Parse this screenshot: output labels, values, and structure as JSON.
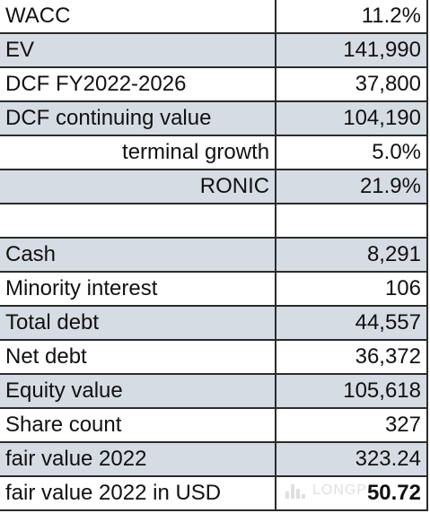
{
  "rows": [
    {
      "label": "WACC",
      "value": "11.2%"
    },
    {
      "label": "EV",
      "value": "141,990"
    },
    {
      "label": "DCF FY2022-2026",
      "value": "37,800"
    },
    {
      "label": "DCF continuing value",
      "value": "104,190"
    },
    {
      "label": "terminal growth",
      "value": "5.0%"
    },
    {
      "label": "RONIC",
      "value": "21.9%"
    },
    {
      "label": "",
      "value": ""
    },
    {
      "label": "Cash",
      "value": "8,291"
    },
    {
      "label": "Minority interest",
      "value": "106"
    },
    {
      "label": "Total debt",
      "value": "44,557"
    },
    {
      "label": "Net debt",
      "value": "36,372"
    },
    {
      "label": "Equity value",
      "value": "105,618"
    },
    {
      "label": "Share count",
      "value": "327"
    },
    {
      "label": "fair value 2022",
      "value": "323.24"
    },
    {
      "label": "fair value 2022 in USD",
      "value": "50.72"
    }
  ],
  "watermark": {
    "text": "LONGP",
    "icon": "bar-chart-logo-icon",
    "color": "#555555"
  },
  "colors": {
    "shade": "#d6dce4",
    "border": "#2b2b2b",
    "text": "#111111"
  }
}
